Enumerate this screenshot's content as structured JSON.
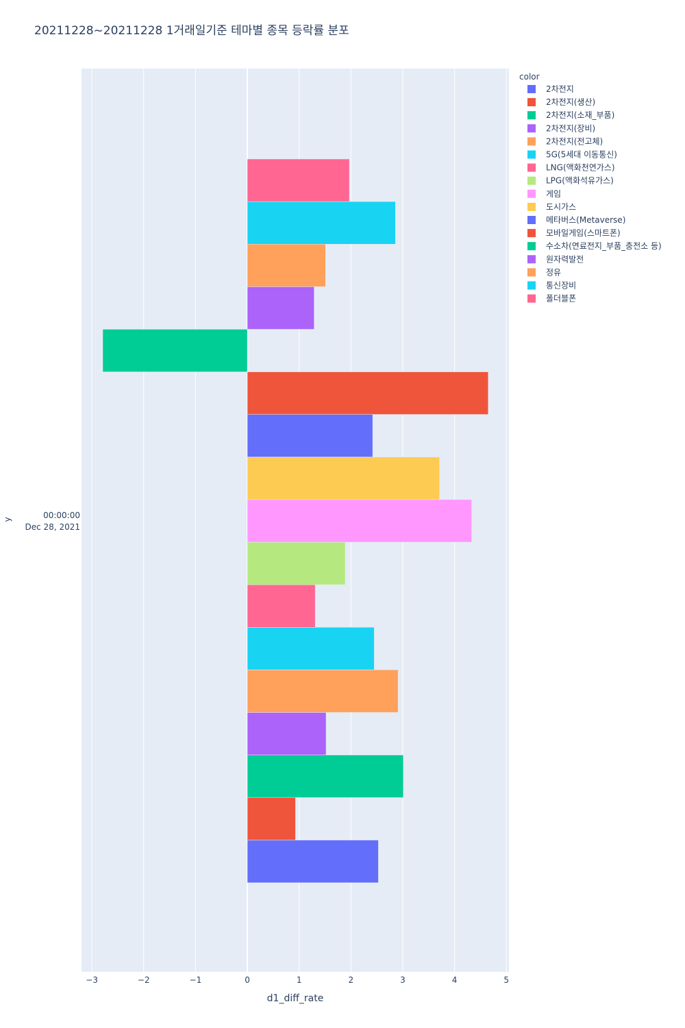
{
  "chart_data": {
    "type": "bar",
    "orientation": "horizontal",
    "title": "20211228~20211228 1거래일기준 테마별 종목 등락률 분포",
    "xlabel": "d1_diff_rate",
    "ylabel": "y",
    "xlim": [
      -3.2,
      5.05
    ],
    "x_ticks": [
      -3,
      -2,
      -1,
      0,
      1,
      2,
      3,
      4,
      5
    ],
    "x_tick_labels": [
      "−3",
      "−2",
      "−1",
      "0",
      "1",
      "2",
      "3",
      "4",
      "5"
    ],
    "y_category_label": [
      "00:00:00",
      "Dec 28, 2021"
    ],
    "grid": true,
    "legend": {
      "title": "color",
      "position": "right"
    },
    "series": [
      {
        "name": "2차전지",
        "value": 2.53,
        "color": "#636efa"
      },
      {
        "name": "2차전지(생산)",
        "value": 0.93,
        "color": "#EF553B"
      },
      {
        "name": "2차전지(소재_부품)",
        "value": 3.01,
        "color": "#00cc96"
      },
      {
        "name": "2차전지(장비)",
        "value": 1.52,
        "color": "#ab63fa"
      },
      {
        "name": "2차전지(전고체)",
        "value": 2.91,
        "color": "#FFA15A"
      },
      {
        "name": "5G(5세대 이동통신)",
        "value": 2.45,
        "color": "#19d3f3"
      },
      {
        "name": "LNG(액화천연가스)",
        "value": 1.31,
        "color": "#FF6692"
      },
      {
        "name": "LPG(액화석유가스)",
        "value": 1.89,
        "color": "#B6E880"
      },
      {
        "name": "게임",
        "value": 4.33,
        "color": "#FF97FF"
      },
      {
        "name": "도시가스",
        "value": 3.71,
        "color": "#FECB52"
      },
      {
        "name": "메타버스(Metaverse)",
        "value": 2.42,
        "color": "#636efa"
      },
      {
        "name": "모바일게임(스마트폰)",
        "value": 4.65,
        "color": "#EF553B"
      },
      {
        "name": "수소차(연료전지_부품_충전소 등)",
        "value": -2.79,
        "color": "#00cc96"
      },
      {
        "name": "원자력발전",
        "value": 1.29,
        "color": "#ab63fa"
      },
      {
        "name": "정유",
        "value": 1.51,
        "color": "#FFA15A"
      },
      {
        "name": "통신장비",
        "value": 2.86,
        "color": "#19d3f3"
      },
      {
        "name": "폴더블폰",
        "value": 1.97,
        "color": "#FF6692"
      }
    ]
  }
}
